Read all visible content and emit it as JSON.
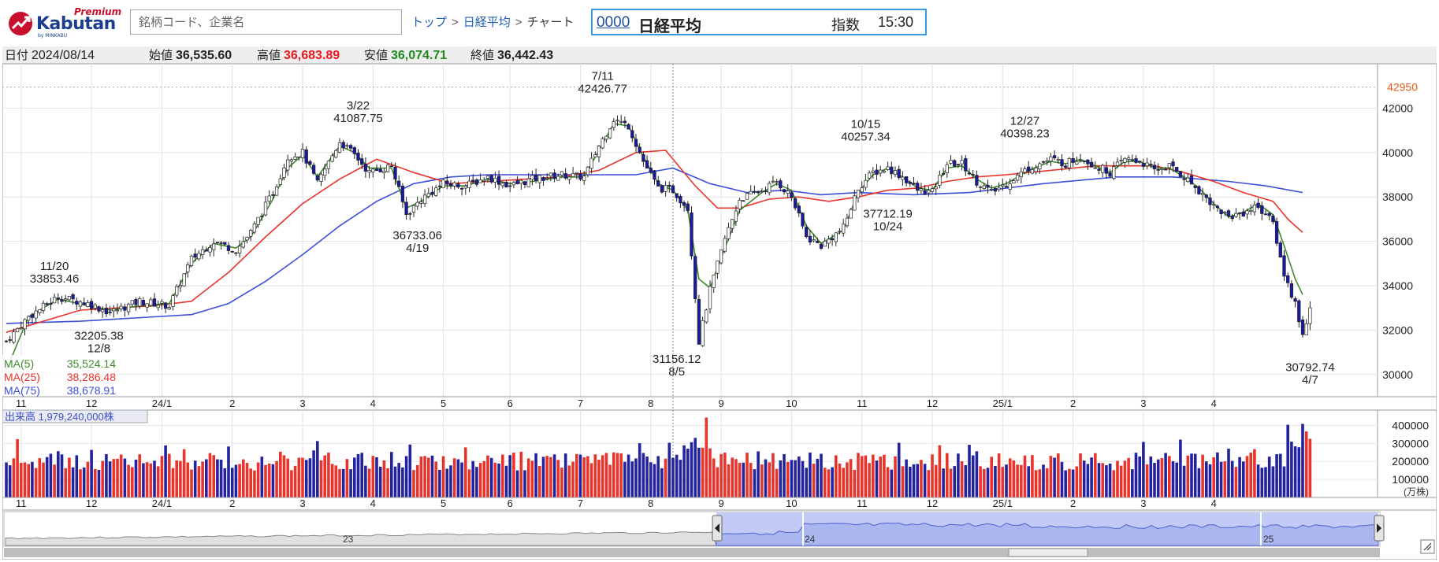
{
  "header": {
    "logo_premium": "Premium",
    "logo_brand": "Kabutan",
    "logo_sub": "by MINKABU",
    "search_placeholder": "銘柄コード、企業名",
    "breadcrumb": [
      "トップ",
      "日経平均",
      "チャート"
    ],
    "ticker_code": "0000",
    "ticker_name": "日経平均",
    "ticker_kind": "指数",
    "ticker_time": "15:30"
  },
  "info_bar": {
    "date_label": "日付",
    "date": "2024/08/14",
    "open_label": "始値",
    "open": "36,535.60",
    "high_label": "高値",
    "high": "36,683.89",
    "low_label": "安値",
    "low": "36,074.71",
    "close_label": "終値",
    "close": "36,442.43"
  },
  "colors": {
    "up": "#ffffff",
    "down": "#1a1aa8",
    "ma5": "#3d8a2e",
    "ma25": "#e8342b",
    "ma75": "#3d4fd8",
    "vol_up": "#e8342b",
    "vol_down": "#23239e",
    "high_marker": "#e05a18"
  },
  "chart_data": {
    "type": "candlestick",
    "x_month_labels": [
      "11",
      "12",
      "24/1",
      "2",
      "3",
      "4",
      "5",
      "6",
      "7",
      "8",
      "9",
      "10",
      "11",
      "12",
      "25/1",
      "2",
      "3",
      "4"
    ],
    "ylim": [
      29000,
      44000
    ],
    "y_ticks": [
      30000,
      32000,
      34000,
      36000,
      38000,
      40000,
      42000
    ],
    "reference_line": 42950,
    "annotations": [
      {
        "date": "11/20",
        "value": "33853.46",
        "position": "above"
      },
      {
        "date": "12/8",
        "value": "32205.38",
        "position": "below"
      },
      {
        "date": "3/22",
        "value": "41087.75",
        "position": "above"
      },
      {
        "date": "4/19",
        "value": "36733.06",
        "position": "below"
      },
      {
        "date": "7/11",
        "value": "42426.77",
        "position": "above"
      },
      {
        "date": "8/5",
        "value": "31156.12",
        "position": "below"
      },
      {
        "date": "10/15",
        "value": "40257.34",
        "position": "above"
      },
      {
        "date": "10/24",
        "value": "37712.19",
        "position": "below"
      },
      {
        "date": "12/27",
        "value": "40398.23",
        "position": "above"
      },
      {
        "date": "4/7",
        "value": "30792.74",
        "position": "below"
      }
    ],
    "ma_legend": [
      {
        "name": "MA(5)",
        "value": "35,524.14"
      },
      {
        "name": "MA(25)",
        "value": "38,286.48"
      },
      {
        "name": "MA(75)",
        "value": "38,678.91"
      }
    ],
    "price_keypoints": [
      [
        0,
        31500
      ],
      [
        6,
        32600
      ],
      [
        14,
        33500
      ],
      [
        22,
        33200
      ],
      [
        28,
        32800
      ],
      [
        36,
        33300
      ],
      [
        44,
        33100
      ],
      [
        50,
        35200
      ],
      [
        56,
        36000
      ],
      [
        62,
        35600
      ],
      [
        66,
        36400
      ],
      [
        72,
        38200
      ],
      [
        76,
        39800
      ],
      [
        80,
        40000
      ],
      [
        84,
        38600
      ],
      [
        90,
        40500
      ],
      [
        94,
        39900
      ],
      [
        98,
        39100
      ],
      [
        104,
        39400
      ],
      [
        108,
        37200
      ],
      [
        112,
        37900
      ],
      [
        118,
        38600
      ],
      [
        124,
        38500
      ],
      [
        130,
        38900
      ],
      [
        136,
        38500
      ],
      [
        142,
        38800
      ],
      [
        150,
        39000
      ],
      [
        156,
        38900
      ],
      [
        160,
        40300
      ],
      [
        164,
        41500
      ],
      [
        168,
        41200
      ],
      [
        172,
        39600
      ],
      [
        176,
        38400
      ],
      [
        180,
        38300
      ],
      [
        184,
        37500
      ],
      [
        187,
        31500
      ],
      [
        190,
        33800
      ],
      [
        194,
        36100
      ],
      [
        198,
        37900
      ],
      [
        204,
        38300
      ],
      [
        208,
        38700
      ],
      [
        212,
        38000
      ],
      [
        216,
        36200
      ],
      [
        220,
        35800
      ],
      [
        226,
        36600
      ],
      [
        230,
        38400
      ],
      [
        234,
        39100
      ],
      [
        238,
        39300
      ],
      [
        242,
        38900
      ],
      [
        246,
        38300
      ],
      [
        250,
        38200
      ],
      [
        254,
        39500
      ],
      [
        258,
        39500
      ],
      [
        262,
        38700
      ],
      [
        266,
        38200
      ],
      [
        270,
        38600
      ],
      [
        276,
        39300
      ],
      [
        282,
        39700
      ],
      [
        286,
        39500
      ],
      [
        290,
        39800
      ],
      [
        294,
        39400
      ],
      [
        298,
        39100
      ],
      [
        302,
        39700
      ],
      [
        306,
        39600
      ],
      [
        310,
        39200
      ],
      [
        314,
        39400
      ],
      [
        318,
        38900
      ],
      [
        322,
        38300
      ],
      [
        326,
        37600
      ],
      [
        330,
        37100
      ],
      [
        334,
        37300
      ],
      [
        338,
        37600
      ],
      [
        342,
        36800
      ],
      [
        345,
        34500
      ],
      [
        348,
        33200
      ],
      [
        350,
        31800
      ],
      [
        352,
        33000
      ]
    ],
    "ma5_points": [
      [
        0,
        30200
      ],
      [
        6,
        32600
      ],
      [
        14,
        33400
      ],
      [
        22,
        33100
      ],
      [
        28,
        32900
      ],
      [
        36,
        33100
      ],
      [
        44,
        33200
      ],
      [
        50,
        35000
      ],
      [
        56,
        35900
      ],
      [
        62,
        35700
      ],
      [
        66,
        36200
      ],
      [
        72,
        37900
      ],
      [
        76,
        39300
      ],
      [
        80,
        39900
      ],
      [
        84,
        38900
      ],
      [
        90,
        40300
      ],
      [
        94,
        40000
      ],
      [
        98,
        39300
      ],
      [
        104,
        39300
      ],
      [
        108,
        37500
      ],
      [
        112,
        37800
      ],
      [
        118,
        38500
      ],
      [
        124,
        38500
      ],
      [
        130,
        38800
      ],
      [
        136,
        38600
      ],
      [
        142,
        38700
      ],
      [
        150,
        38900
      ],
      [
        156,
        38900
      ],
      [
        160,
        40100
      ],
      [
        164,
        41300
      ],
      [
        168,
        41200
      ],
      [
        172,
        39800
      ],
      [
        176,
        38600
      ],
      [
        180,
        38300
      ],
      [
        184,
        37400
      ],
      [
        187,
        34300
      ],
      [
        190,
        33900
      ],
      [
        194,
        35700
      ],
      [
        198,
        37400
      ],
      [
        204,
        38200
      ],
      [
        208,
        38600
      ],
      [
        212,
        38300
      ],
      [
        216,
        36700
      ],
      [
        220,
        35900
      ],
      [
        226,
        36500
      ],
      [
        230,
        38200
      ],
      [
        234,
        39000
      ],
      [
        238,
        39300
      ],
      [
        242,
        38900
      ],
      [
        246,
        38400
      ],
      [
        250,
        38300
      ],
      [
        254,
        39300
      ],
      [
        258,
        39400
      ],
      [
        262,
        38800
      ],
      [
        266,
        38400
      ],
      [
        270,
        38600
      ],
      [
        276,
        39200
      ],
      [
        282,
        39600
      ],
      [
        286,
        39500
      ],
      [
        290,
        39700
      ],
      [
        294,
        39400
      ],
      [
        298,
        39100
      ],
      [
        302,
        39600
      ],
      [
        306,
        39600
      ],
      [
        310,
        39300
      ],
      [
        314,
        39300
      ],
      [
        318,
        38900
      ],
      [
        322,
        38400
      ],
      [
        326,
        37700
      ],
      [
        330,
        37100
      ],
      [
        334,
        37300
      ],
      [
        338,
        37700
      ],
      [
        342,
        37200
      ],
      [
        345,
        35800
      ],
      [
        348,
        34300
      ],
      [
        350,
        33600
      ]
    ],
    "ma25_points": [
      [
        0,
        31900
      ],
      [
        20,
        32900
      ],
      [
        40,
        33100
      ],
      [
        50,
        33300
      ],
      [
        60,
        34600
      ],
      [
        70,
        36200
      ],
      [
        80,
        37700
      ],
      [
        90,
        38800
      ],
      [
        100,
        39700
      ],
      [
        110,
        39100
      ],
      [
        120,
        38600
      ],
      [
        130,
        38700
      ],
      [
        140,
        38800
      ],
      [
        150,
        38900
      ],
      [
        160,
        39200
      ],
      [
        170,
        40000
      ],
      [
        178,
        40100
      ],
      [
        186,
        38500
      ],
      [
        192,
        37500
      ],
      [
        198,
        37500
      ],
      [
        206,
        37900
      ],
      [
        214,
        38000
      ],
      [
        222,
        37800
      ],
      [
        230,
        38000
      ],
      [
        238,
        38300
      ],
      [
        246,
        38400
      ],
      [
        254,
        38700
      ],
      [
        262,
        38900
      ],
      [
        270,
        39000
      ],
      [
        282,
        39200
      ],
      [
        294,
        39400
      ],
      [
        302,
        39400
      ],
      [
        310,
        39400
      ],
      [
        318,
        39100
      ],
      [
        326,
        38700
      ],
      [
        334,
        38200
      ],
      [
        342,
        37800
      ],
      [
        346,
        37000
      ],
      [
        350,
        36400
      ]
    ],
    "ma75_points": [
      [
        0,
        32300
      ],
      [
        20,
        32400
      ],
      [
        40,
        32600
      ],
      [
        50,
        32700
      ],
      [
        60,
        33200
      ],
      [
        70,
        34200
      ],
      [
        80,
        35400
      ],
      [
        90,
        36700
      ],
      [
        100,
        37800
      ],
      [
        110,
        38600
      ],
      [
        120,
        38900
      ],
      [
        130,
        39000
      ],
      [
        150,
        39000
      ],
      [
        170,
        39000
      ],
      [
        180,
        39300
      ],
      [
        190,
        38600
      ],
      [
        200,
        38200
      ],
      [
        210,
        38300
      ],
      [
        220,
        38100
      ],
      [
        230,
        38200
      ],
      [
        245,
        38100
      ],
      [
        260,
        38200
      ],
      [
        280,
        38600
      ],
      [
        300,
        38900
      ],
      [
        315,
        38900
      ],
      [
        330,
        38700
      ],
      [
        340,
        38500
      ],
      [
        350,
        38200
      ]
    ],
    "volume_unit": "(万株)",
    "volume_legend": "出来高 1,979,240,000株",
    "volume_ylim": [
      0,
      450000
    ],
    "volume_ticks": [
      100000,
      200000,
      300000,
      400000
    ],
    "navigator_labels": [
      "23",
      "24",
      "25"
    ]
  }
}
